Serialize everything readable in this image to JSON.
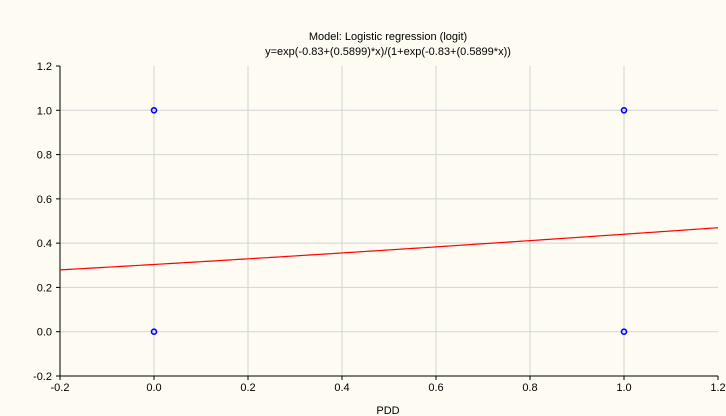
{
  "chart_data": {
    "type": "scatter",
    "title": "Model: Logistic regression (logit)",
    "subtitle": "y=exp(-0.83+(0.5899)*x)/(1+exp(-0.83+(0.5899*x))",
    "xlabel": "PDD",
    "ylabel": "",
    "xlim": [
      -0.2,
      1.2
    ],
    "ylim": [
      -0.2,
      1.2
    ],
    "x_ticks": [
      "-0.2",
      "0.0",
      "0.2",
      "0.4",
      "0.6",
      "0.8",
      "1.0",
      "1.2"
    ],
    "y_ticks": [
      "-0.2",
      "0.0",
      "0.2",
      "0.4",
      "0.6",
      "0.8",
      "1.0",
      "1.2"
    ],
    "grid": true,
    "points": [
      {
        "x": 0.0,
        "y": 1.0
      },
      {
        "x": 1.0,
        "y": 1.0
      },
      {
        "x": 0.0,
        "y": 0.0
      },
      {
        "x": 1.0,
        "y": 0.0
      }
    ],
    "curve": {
      "intercept": -0.83,
      "slope": 0.5899
    },
    "colors": {
      "points": "#0000ff",
      "curve": "#ff0000",
      "grid": "#d4d4d4",
      "background": "#fdfbf2"
    }
  }
}
